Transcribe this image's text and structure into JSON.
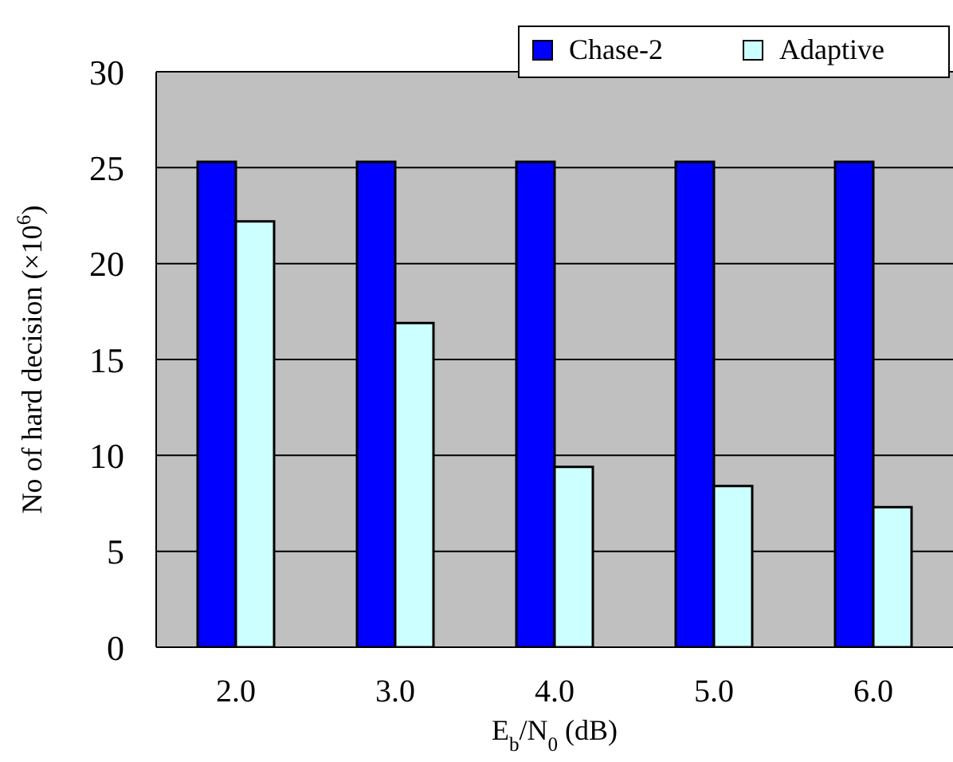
{
  "chart_data": {
    "type": "bar",
    "xlabel": "E$_{b}$/N$_{0}$ (dB)",
    "ylabel": "No of hard decision (×10$^{6}$)",
    "categories": [
      "2.0",
      "3.0",
      "4.0",
      "5.0",
      "6.0"
    ],
    "series": [
      {
        "name": "Chase-2",
        "color": "#0000ff",
        "values": [
          25.3,
          25.3,
          25.3,
          25.3,
          25.3
        ]
      },
      {
        "name": "Adaptive",
        "color": "#ccffff",
        "values": [
          22.2,
          16.9,
          9.4,
          8.4,
          7.3
        ]
      }
    ],
    "ylim": [
      0,
      30
    ],
    "yticks": [
      0,
      5,
      10,
      15,
      20,
      25,
      30
    ],
    "grid": "y",
    "legend": "top right"
  }
}
